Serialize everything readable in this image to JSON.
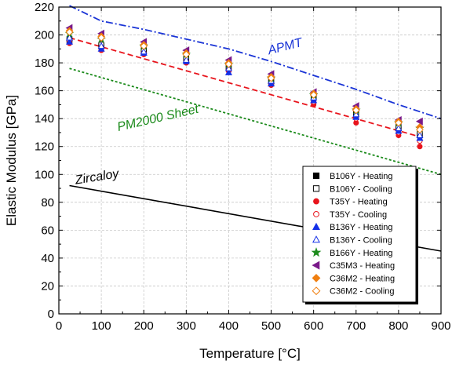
{
  "chart_data": {
    "type": "scatter",
    "xlabel": "Temperature [°C]",
    "ylabel": "Elastic Modulus [GPa]",
    "xlim": [
      0,
      900
    ],
    "ylim": [
      0,
      220
    ],
    "xticks": [
      0,
      100,
      200,
      300,
      400,
      500,
      600,
      700,
      800,
      900
    ],
    "yticks": [
      0,
      20,
      40,
      60,
      80,
      100,
      120,
      140,
      160,
      180,
      200,
      220
    ],
    "grid": true,
    "legend_position": "bottom-right",
    "series": [
      {
        "name": "B106Y - Heating",
        "marker": "square",
        "filled": true,
        "color": "#000000",
        "x": [
          25,
          100,
          200,
          300,
          400,
          500,
          600,
          700,
          800,
          850
        ],
        "y": [
          196,
          192,
          188,
          182,
          176,
          166,
          155,
          143,
          133,
          128
        ]
      },
      {
        "name": "B106Y - Cooling",
        "marker": "square",
        "filled": false,
        "color": "#000000",
        "x": [
          25,
          100,
          200,
          300,
          400,
          500,
          600,
          700,
          800,
          850
        ],
        "y": [
          197,
          193,
          189,
          183,
          177,
          167,
          156,
          144,
          134,
          129
        ]
      },
      {
        "name": "T35Y - Heating",
        "marker": "circle",
        "filled": true,
        "color": "#e8141c",
        "x": [
          25,
          100,
          200,
          300,
          400,
          500,
          600,
          700,
          800,
          850
        ],
        "y": [
          194,
          189,
          186,
          180,
          174,
          164,
          150,
          137,
          128,
          120
        ]
      },
      {
        "name": "T35Y - Cooling",
        "marker": "circle",
        "filled": false,
        "color": "#e8141c",
        "x": [
          25,
          100,
          200,
          300,
          400,
          500,
          600,
          700,
          800,
          850
        ],
        "y": [
          196,
          191,
          187,
          181,
          175,
          165,
          152,
          140,
          130,
          124
        ]
      },
      {
        "name": "B136Y - Heating",
        "marker": "triangle",
        "filled": true,
        "color": "#1430e8",
        "x": [
          25,
          100,
          200,
          300,
          400,
          500,
          600,
          700,
          800,
          850
        ],
        "y": [
          195,
          190,
          187,
          181,
          173,
          165,
          153,
          141,
          131,
          126
        ]
      },
      {
        "name": "B136Y - Cooling",
        "marker": "triangle",
        "filled": false,
        "color": "#1430e8",
        "x": [
          25,
          100,
          200,
          300,
          400,
          500,
          600,
          700,
          800,
          850
        ],
        "y": [
          198,
          192,
          188,
          182,
          176,
          167,
          155,
          143,
          133,
          128
        ]
      },
      {
        "name": "B166Y - Heating",
        "marker": "star",
        "filled": true,
        "color": "#1e8c1e",
        "x": [
          25,
          100,
          200,
          300,
          400,
          500,
          600,
          700,
          800,
          850
        ],
        "y": [
          201,
          197,
          192,
          186,
          179,
          169,
          157,
          146,
          137,
          133
        ]
      },
      {
        "name": "C35M3 - Heating",
        "marker": "triangle-left",
        "filled": true,
        "color": "#7a1a8a",
        "x": [
          25,
          100,
          200,
          300,
          400,
          500,
          600,
          700,
          800,
          850
        ],
        "y": [
          205,
          201,
          195,
          189,
          182,
          172,
          159,
          149,
          139,
          138
        ]
      },
      {
        "name": "C36M2 - Heating",
        "marker": "diamond",
        "filled": true,
        "color": "#f07f10",
        "x": [
          25,
          100,
          200,
          300,
          400,
          500,
          600,
          700,
          800,
          850
        ],
        "y": [
          203,
          199,
          193,
          187,
          180,
          170,
          158,
          147,
          138,
          134
        ]
      },
      {
        "name": "C36M2 - Cooling",
        "marker": "diamond",
        "filled": false,
        "color": "#f07f10",
        "x": [
          25,
          100,
          200,
          300,
          400,
          500,
          600,
          700,
          800,
          850
        ],
        "y": [
          202,
          198,
          192,
          186,
          179,
          169,
          157,
          146,
          137,
          132
        ]
      }
    ],
    "reference_lines": [
      {
        "name": "APMT",
        "color": "#1a34d6",
        "style": "dash-dot",
        "x": [
          25,
          100,
          200,
          300,
          400,
          500,
          600,
          700,
          800,
          900
        ],
        "y": [
          221,
          210,
          204,
          197,
          190,
          181,
          171,
          161,
          150,
          140
        ]
      },
      {
        "name": "PM2000 Sheet",
        "color": "#1a8a1a",
        "style": "dotted",
        "x": [
          25,
          900
        ],
        "y": [
          176,
          100
        ]
      },
      {
        "name": "Zircaloy",
        "color": "#000000",
        "style": "solid",
        "x": [
          25,
          900
        ],
        "y": [
          92,
          45
        ]
      },
      {
        "name": "",
        "color": "#e8141c",
        "style": "dashed",
        "x": [
          25,
          850
        ],
        "y": [
          198,
          127
        ]
      }
    ],
    "annotations": [
      {
        "text": "APMT",
        "x": 495,
        "y": 186,
        "rotation": -14,
        "color": "#1a34d6"
      },
      {
        "text": "PM2000 Sheet",
        "x": 140,
        "y": 131,
        "rotation": -13,
        "color": "#1a8a1a"
      },
      {
        "text": "Zircaloy",
        "x": 40,
        "y": 93,
        "rotation": -9,
        "color": "#000000"
      }
    ]
  }
}
